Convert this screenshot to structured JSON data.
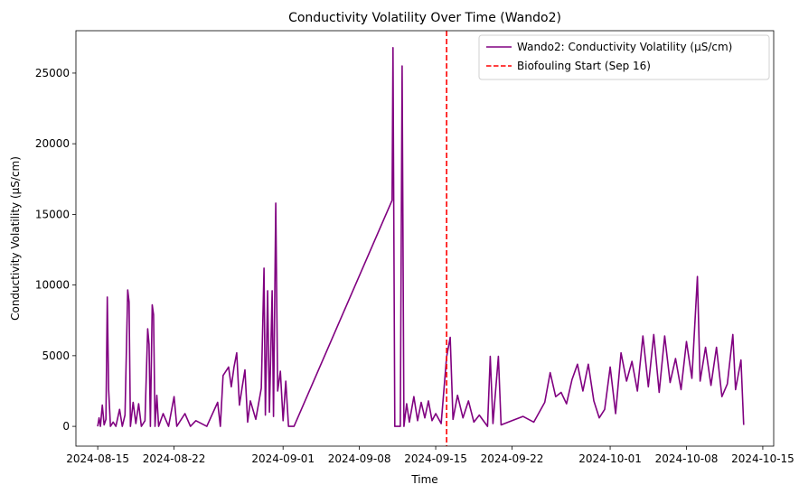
{
  "chart_data": {
    "type": "line",
    "title": "Conductivity Volatility Over Time (Wando2)",
    "xlabel": "Time",
    "ylabel": "Conductivity Volatility (µS/cm)",
    "x_range": [
      "2024-08-13",
      "2024-10-16"
    ],
    "ylim": [
      -1400,
      28000
    ],
    "x_ticks": [
      "2024-08-15",
      "2024-08-22",
      "2024-09-01",
      "2024-09-08",
      "2024-09-15",
      "2024-09-22",
      "2024-10-01",
      "2024-10-08",
      "2024-10-15"
    ],
    "y_ticks": [
      0,
      5000,
      10000,
      15000,
      20000,
      25000
    ],
    "grid": false,
    "legend_position": "top-right",
    "series": [
      {
        "name": "Wando2: Conductivity Volatility (µS/cm)",
        "color": "#800080",
        "points": [
          [
            "2024-08-15 00:00",
            0
          ],
          [
            "2024-08-15 03:00",
            600
          ],
          [
            "2024-08-15 06:00",
            0
          ],
          [
            "2024-08-15 10:00",
            1500
          ],
          [
            "2024-08-15 14:00",
            100
          ],
          [
            "2024-08-15 18:00",
            500
          ],
          [
            "2024-08-15 21:00",
            9150
          ],
          [
            "2024-08-16 00:00",
            2600
          ],
          [
            "2024-08-16 04:00",
            0
          ],
          [
            "2024-08-16 10:00",
            300
          ],
          [
            "2024-08-16 16:00",
            0
          ],
          [
            "2024-08-17 00:00",
            1200
          ],
          [
            "2024-08-17 06:00",
            0
          ],
          [
            "2024-08-17 12:00",
            800
          ],
          [
            "2024-08-17 18:00",
            9650
          ],
          [
            "2024-08-17 21:00",
            8800
          ],
          [
            "2024-08-18 00:00",
            0
          ],
          [
            "2024-08-18 06:00",
            1700
          ],
          [
            "2024-08-18 12:00",
            200
          ],
          [
            "2024-08-18 18:00",
            1600
          ],
          [
            "2024-08-19 00:00",
            0
          ],
          [
            "2024-08-19 08:00",
            400
          ],
          [
            "2024-08-19 14:00",
            6900
          ],
          [
            "2024-08-19 17:00",
            5800
          ],
          [
            "2024-08-19 20:00",
            0
          ],
          [
            "2024-08-20 00:00",
            8600
          ],
          [
            "2024-08-20 03:00",
            7900
          ],
          [
            "2024-08-20 06:00",
            0
          ],
          [
            "2024-08-20 10:00",
            2200
          ],
          [
            "2024-08-20 14:00",
            0
          ],
          [
            "2024-08-21 00:00",
            900
          ],
          [
            "2024-08-21 12:00",
            0
          ],
          [
            "2024-08-22 00:00",
            2100
          ],
          [
            "2024-08-22 06:00",
            0
          ],
          [
            "2024-08-23 00:00",
            900
          ],
          [
            "2024-08-23 12:00",
            0
          ],
          [
            "2024-08-24 00:00",
            400
          ],
          [
            "2024-08-25 00:00",
            0
          ],
          [
            "2024-08-26 00:00",
            1700
          ],
          [
            "2024-08-26 06:00",
            0
          ],
          [
            "2024-08-26 12:00",
            3600
          ],
          [
            "2024-08-26 18:00",
            3900
          ],
          [
            "2024-08-27 00:00",
            4200
          ],
          [
            "2024-08-27 06:00",
            2800
          ],
          [
            "2024-08-27 12:00",
            4200
          ],
          [
            "2024-08-27 18:00",
            5200
          ],
          [
            "2024-08-28 00:00",
            1500
          ],
          [
            "2024-08-28 06:00",
            2800
          ],
          [
            "2024-08-28 12:00",
            4000
          ],
          [
            "2024-08-28 18:00",
            300
          ],
          [
            "2024-08-29 00:00",
            1800
          ],
          [
            "2024-08-29 12:00",
            500
          ],
          [
            "2024-08-30 00:00",
            2700
          ],
          [
            "2024-08-30 06:00",
            11200
          ],
          [
            "2024-08-30 09:00",
            800
          ],
          [
            "2024-08-30 14:00",
            9600
          ],
          [
            "2024-08-30 18:00",
            1000
          ],
          [
            "2024-08-31 00:00",
            9600
          ],
          [
            "2024-08-31 03:00",
            700
          ],
          [
            "2024-08-31 08:00",
            15800
          ],
          [
            "2024-08-31 12:00",
            2500
          ],
          [
            "2024-08-31 18:00",
            3900
          ],
          [
            "2024-09-01 00:00",
            400
          ],
          [
            "2024-09-01 06:00",
            3200
          ],
          [
            "2024-09-01 12:00",
            0
          ],
          [
            "2024-09-02 00:00",
            0
          ],
          [
            "2024-09-11 00:00",
            16000
          ],
          [
            "2024-09-11 02:00",
            26800
          ],
          [
            "2024-09-11 06:00",
            0
          ],
          [
            "2024-09-11 18:00",
            0
          ],
          [
            "2024-09-11 22:00",
            25500
          ],
          [
            "2024-09-12 02:00",
            0
          ],
          [
            "2024-09-12 08:00",
            1600
          ],
          [
            "2024-09-12 14:00",
            300
          ],
          [
            "2024-09-13 00:00",
            2100
          ],
          [
            "2024-09-13 08:00",
            400
          ],
          [
            "2024-09-13 16:00",
            1700
          ],
          [
            "2024-09-14 00:00",
            600
          ],
          [
            "2024-09-14 08:00",
            1800
          ],
          [
            "2024-09-14 16:00",
            400
          ],
          [
            "2024-09-15 00:00",
            900
          ],
          [
            "2024-09-15 12:00",
            200
          ],
          [
            "2024-09-16 00:00",
            4900
          ],
          [
            "2024-09-16 08:00",
            6300
          ],
          [
            "2024-09-16 14:00",
            500
          ],
          [
            "2024-09-17 00:00",
            2200
          ],
          [
            "2024-09-17 12:00",
            600
          ],
          [
            "2024-09-18 00:00",
            1800
          ],
          [
            "2024-09-18 12:00",
            300
          ],
          [
            "2024-09-19 00:00",
            800
          ],
          [
            "2024-09-19 18:00",
            0
          ],
          [
            "2024-09-20 00:00",
            4950
          ],
          [
            "2024-09-20 06:00",
            200
          ],
          [
            "2024-09-20 18:00",
            4950
          ],
          [
            "2024-09-21 00:00",
            100
          ],
          [
            "2024-09-22 00:00",
            400
          ],
          [
            "2024-09-23 00:00",
            700
          ],
          [
            "2024-09-24 00:00",
            300
          ],
          [
            "2024-09-25 00:00",
            1700
          ],
          [
            "2024-09-25 12:00",
            3800
          ],
          [
            "2024-09-26 00:00",
            2100
          ],
          [
            "2024-09-26 12:00",
            2400
          ],
          [
            "2024-09-27 00:00",
            1600
          ],
          [
            "2024-09-27 12:00",
            3300
          ],
          [
            "2024-09-28 00:00",
            4400
          ],
          [
            "2024-09-28 12:00",
            2500
          ],
          [
            "2024-09-29 00:00",
            4400
          ],
          [
            "2024-09-29 12:00",
            1800
          ],
          [
            "2024-09-30 00:00",
            600
          ],
          [
            "2024-09-30 12:00",
            1200
          ],
          [
            "2024-10-01 00:00",
            4200
          ],
          [
            "2024-10-01 12:00",
            900
          ],
          [
            "2024-10-02 00:00",
            5200
          ],
          [
            "2024-10-02 12:00",
            3200
          ],
          [
            "2024-10-03 00:00",
            4600
          ],
          [
            "2024-10-03 12:00",
            2500
          ],
          [
            "2024-10-04 00:00",
            6400
          ],
          [
            "2024-10-04 12:00",
            2800
          ],
          [
            "2024-10-05 00:00",
            6500
          ],
          [
            "2024-10-05 12:00",
            2400
          ],
          [
            "2024-10-06 00:00",
            6400
          ],
          [
            "2024-10-06 12:00",
            3100
          ],
          [
            "2024-10-07 00:00",
            4800
          ],
          [
            "2024-10-07 12:00",
            2600
          ],
          [
            "2024-10-08 00:00",
            6000
          ],
          [
            "2024-10-08 12:00",
            3400
          ],
          [
            "2024-10-09 00:00",
            10600
          ],
          [
            "2024-10-09 06:00",
            3200
          ],
          [
            "2024-10-09 18:00",
            5600
          ],
          [
            "2024-10-10 06:00",
            2900
          ],
          [
            "2024-10-10 18:00",
            5600
          ],
          [
            "2024-10-11 06:00",
            2100
          ],
          [
            "2024-10-11 18:00",
            3000
          ],
          [
            "2024-10-12 06:00",
            6500
          ],
          [
            "2024-10-12 12:00",
            2600
          ],
          [
            "2024-10-13 00:00",
            4700
          ],
          [
            "2024-10-13 06:00",
            100
          ]
        ]
      }
    ],
    "reference_lines": [
      {
        "name": "Biofouling Start (Sep 16)",
        "x": "2024-09-16",
        "color": "#ff0000",
        "style": "dashed"
      }
    ]
  }
}
